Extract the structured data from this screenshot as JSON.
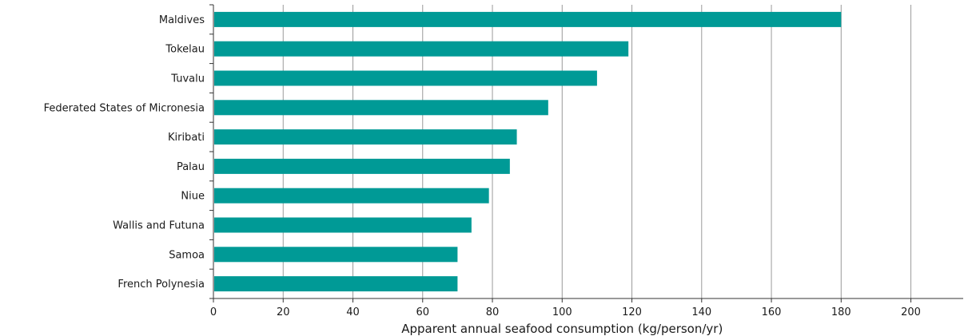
{
  "chart_data": {
    "type": "bar",
    "orientation": "horizontal",
    "categories": [
      "Maldives",
      "Tokelau",
      "Tuvalu",
      "Federated States of Micronesia",
      "Kiribati",
      "Palau",
      "Niue",
      "Wallis and Futuna",
      "Samoa",
      "French Polynesia"
    ],
    "values": [
      180,
      119,
      110,
      96,
      87,
      85,
      79,
      74,
      70,
      70
    ],
    "xlabel": "Apparent annual seafood consumption (kg/person/yr)",
    "ylabel": "",
    "xlim": [
      0,
      215
    ],
    "xticks": [
      0,
      20,
      40,
      60,
      80,
      100,
      120,
      140,
      160,
      180,
      200
    ],
    "xtick_labels": [
      "0",
      "20",
      "40",
      "60",
      "80",
      "100",
      "120",
      "140",
      "160",
      "180",
      "200"
    ],
    "grid": "vertical",
    "legend": "none",
    "bar_color": "#009a96"
  }
}
